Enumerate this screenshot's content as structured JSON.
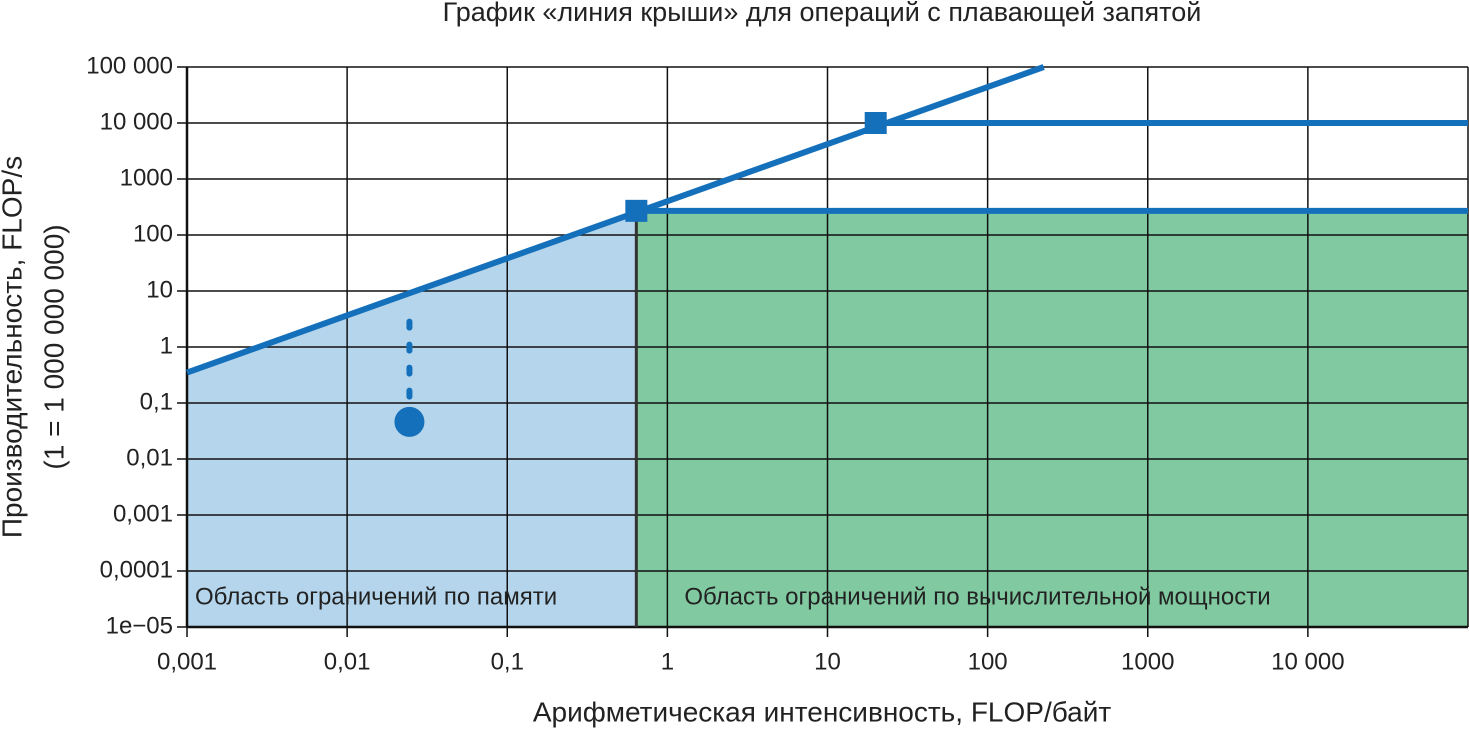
{
  "chart_data": {
    "type": "line",
    "title": "График «линия крыши» для операций с плавающей запятой",
    "xlabel": "Арифметическая интенсивность, FLOP/байт",
    "ylabel": [
      "Производительность, FLOP/s",
      "(1 = 1 000 000 000)"
    ],
    "log_x": true,
    "log_y": true,
    "grid": true,
    "xlim": [
      0.001,
      100000
    ],
    "ylim": [
      1e-05,
      100000
    ],
    "xticks": [
      {
        "value": 0.001,
        "label": "0,001"
      },
      {
        "value": 0.01,
        "label": "0,01"
      },
      {
        "value": 0.1,
        "label": "0,1"
      },
      1,
      10,
      100,
      1000,
      {
        "value": 10000,
        "label": "10 000"
      }
    ],
    "yticks": [
      {
        "value": 1e-05,
        "label": "1e−05"
      },
      {
        "value": 0.0001,
        "label": "0,0001"
      },
      {
        "value": 0.001,
        "label": "0,001"
      },
      {
        "value": 0.01,
        "label": "0,01"
      },
      {
        "value": 0.1,
        "label": "0,1"
      },
      1,
      10,
      100,
      1000,
      {
        "value": 10000,
        "label": "10 000"
      },
      {
        "value": 100000,
        "label": "100 000"
      }
    ],
    "regions": [
      {
        "label": "Область ограничений по памяти",
        "color": "#b4d5eb",
        "x": [
          0.001,
          0.001,
          0.64,
          0.64
        ],
        "values": [
          1e-05,
          0.35,
          270,
          1e-05
        ]
      },
      {
        "label": "Область ограничений по вычислительной мощности",
        "color": "#80c9a1",
        "x": [
          0.64,
          0.64,
          100000,
          100000
        ],
        "values": [
          1e-05,
          270,
          270,
          1e-05
        ]
      }
    ],
    "series": [
      {
        "color": "#333333",
        "style": "solid",
        "width": 3,
        "x": [
          0.64,
          0.64
        ],
        "values": [
          1e-05,
          270
        ]
      },
      {
        "color": "#1570bb",
        "style": "solid",
        "width": 6,
        "x": [
          0.001,
          224
        ],
        "values": [
          0.35,
          100000
        ]
      },
      {
        "color": "#1570bb",
        "style": "solid",
        "width": 6,
        "x": [
          20,
          100000
        ],
        "values": [
          10000,
          10000
        ]
      },
      {
        "color": "#1570bb",
        "style": "solid",
        "width": 6,
        "x": [
          0.64,
          100000
        ],
        "values": [
          270,
          270
        ]
      },
      {
        "color": "#1570bb",
        "style": "dotted",
        "width": 6,
        "x": [
          0.0245,
          0.0245
        ],
        "values": [
          0.13,
          4.2
        ]
      },
      {
        "color": "#1570bb",
        "style": "none",
        "marker": "square",
        "x": [
          0.64,
          20
        ],
        "values": [
          270,
          10000
        ]
      },
      {
        "color": "#1570bb",
        "style": "none",
        "marker": "circle",
        "x": [
          0.0245
        ],
        "values": [
          0.046
        ]
      }
    ]
  }
}
